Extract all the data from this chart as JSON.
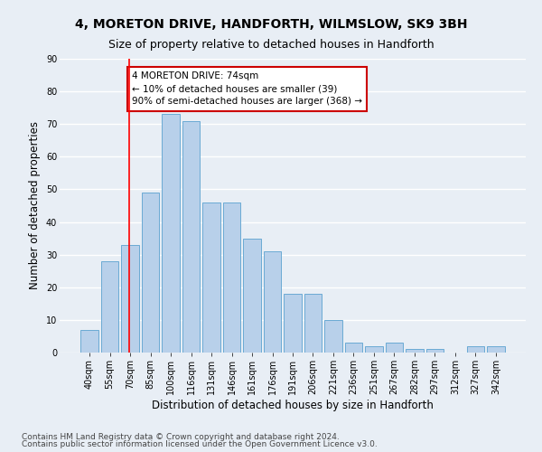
{
  "title": "4, MORETON DRIVE, HANDFORTH, WILMSLOW, SK9 3BH",
  "subtitle": "Size of property relative to detached houses in Handforth",
  "xlabel": "Distribution of detached houses by size in Handforth",
  "ylabel": "Number of detached properties",
  "categories": [
    "40sqm",
    "55sqm",
    "70sqm",
    "85sqm",
    "100sqm",
    "116sqm",
    "131sqm",
    "146sqm",
    "161sqm",
    "176sqm",
    "191sqm",
    "206sqm",
    "221sqm",
    "236sqm",
    "251sqm",
    "267sqm",
    "282sqm",
    "297sqm",
    "312sqm",
    "327sqm",
    "342sqm"
  ],
  "values": [
    7,
    28,
    33,
    49,
    73,
    71,
    46,
    46,
    35,
    31,
    18,
    18,
    10,
    3,
    2,
    3,
    1,
    1,
    0,
    2,
    2
  ],
  "bar_color": "#b8d0ea",
  "bar_edge_color": "#6aaad4",
  "bg_color": "#e8eef5",
  "grid_color": "#ffffff",
  "annotation_text": "4 MORETON DRIVE: 74sqm\n← 10% of detached houses are smaller (39)\n90% of semi-detached houses are larger (368) →",
  "annotation_box_color": "#ffffff",
  "annotation_box_edge": "#cc0000",
  "footer_line1": "Contains HM Land Registry data © Crown copyright and database right 2024.",
  "footer_line2": "Contains public sector information licensed under the Open Government Licence v3.0.",
  "ylim": [
    0,
    90
  ],
  "yticks": [
    0,
    10,
    20,
    30,
    40,
    50,
    60,
    70,
    80,
    90
  ],
  "red_line_x": 1.97,
  "title_fontsize": 10,
  "subtitle_fontsize": 9,
  "axis_label_fontsize": 8.5,
  "tick_fontsize": 7,
  "footer_fontsize": 6.5,
  "ann_fontsize": 7.5
}
